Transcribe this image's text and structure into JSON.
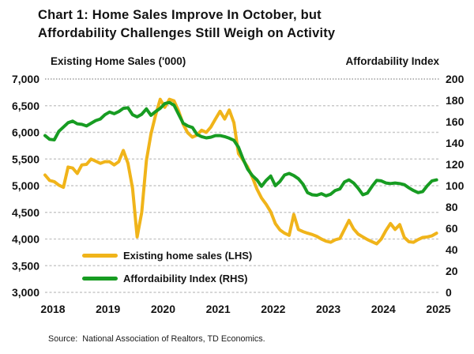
{
  "title": {
    "line1": "Chart 1: Home Sales Improve In October, but",
    "line2": "Affordability Challenges Still Weigh on Activity"
  },
  "axis_headers": {
    "left": "Existing Home Sales ('000)",
    "right": "Affordability Index"
  },
  "legend": [
    {
      "label": "Existing home sales (LHS)",
      "color": "#f0b41a"
    },
    {
      "label": "Affordaibility Index (RHS)",
      "color": "#179c22"
    }
  ],
  "source": "Source:  National Association of Realtors, TD Economics.",
  "colors": {
    "sales_line": "#f0b41a",
    "afford_line": "#179c22",
    "grid_line": "#c9c9c9",
    "grid_line_top": "#8a8a8a",
    "text": "#131313"
  },
  "chart_data": {
    "type": "line",
    "title": "Chart 1: Home Sales Improve In October, but Affordability Challenges Still Weigh on Activity",
    "x_tick_labels": [
      "2018",
      "2019",
      "2020",
      "2021",
      "2022",
      "2023",
      "2024",
      "2025"
    ],
    "x_note_points_per_year": 12,
    "left_axis": {
      "label": "Existing Home Sales ('000)",
      "min": 3000,
      "max": 7000,
      "tick_labels": [
        "7,000",
        "6,500",
        "6,000",
        "5,500",
        "5,000",
        "4,500",
        "4,000",
        "3,500",
        "3,000"
      ]
    },
    "right_axis": {
      "label": "Affordability Index",
      "min": 0,
      "max": 200,
      "tick_labels": [
        "200",
        "180",
        "160",
        "140",
        "120",
        "100",
        "80",
        "60",
        "40",
        "20",
        "0"
      ]
    },
    "grid": "horizontal-dashed",
    "legend_position": "inside-lower-left",
    "series": [
      {
        "name": "Existing home sales (LHS)",
        "axis": "LHS",
        "color": "#f0b41a",
        "values": [
          5200,
          5100,
          5075,
          5010,
          4970,
          5350,
          5330,
          5230,
          5390,
          5400,
          5500,
          5460,
          5420,
          5450,
          5450,
          5390,
          5450,
          5660,
          5420,
          4950,
          4040,
          4500,
          5470,
          5970,
          6320,
          6620,
          6470,
          6620,
          6590,
          6400,
          6150,
          5990,
          5910,
          5950,
          6040,
          6000,
          6100,
          6250,
          6395,
          6250,
          6420,
          6180,
          5600,
          5480,
          5350,
          5160,
          4940,
          4770,
          4650,
          4510,
          4290,
          4170,
          4110,
          4070,
          4460,
          4180,
          4140,
          4110,
          4085,
          4050,
          4000,
          3960,
          3940,
          3985,
          4010,
          4180,
          4350,
          4190,
          4090,
          4040,
          3990,
          3950,
          3910,
          4000,
          4160,
          4290,
          4180,
          4270,
          4030,
          3950,
          3940,
          3990,
          4030,
          4040,
          4060,
          4110
        ]
      },
      {
        "name": "Affordaibility Index (RHS)",
        "axis": "RHS",
        "color": "#179c22",
        "values": [
          147,
          143.5,
          143,
          151,
          155,
          159,
          160.5,
          158,
          157.5,
          156,
          158.5,
          161,
          162.5,
          166.5,
          169,
          167.5,
          169.5,
          172.5,
          173,
          166.5,
          164.5,
          167,
          172,
          166,
          169.5,
          172.5,
          177,
          178,
          175.5,
          167,
          158.5,
          156,
          154.5,
          148,
          146,
          144.8,
          145.5,
          147,
          147,
          146,
          144.5,
          142.5,
          136,
          125,
          115.5,
          109.5,
          105.5,
          99.5,
          105,
          109,
          100,
          104,
          110,
          111.5,
          109.5,
          106.5,
          101.5,
          93.5,
          91.5,
          91,
          92.5,
          90.5,
          92,
          95.5,
          97,
          103.5,
          105.5,
          102.5,
          97.5,
          91.5,
          93,
          99.5,
          105,
          104.5,
          102.5,
          102,
          102.5,
          102,
          101,
          98,
          95.5,
          93.5,
          94.5,
          100,
          104.5,
          105.5
        ]
      }
    ]
  }
}
